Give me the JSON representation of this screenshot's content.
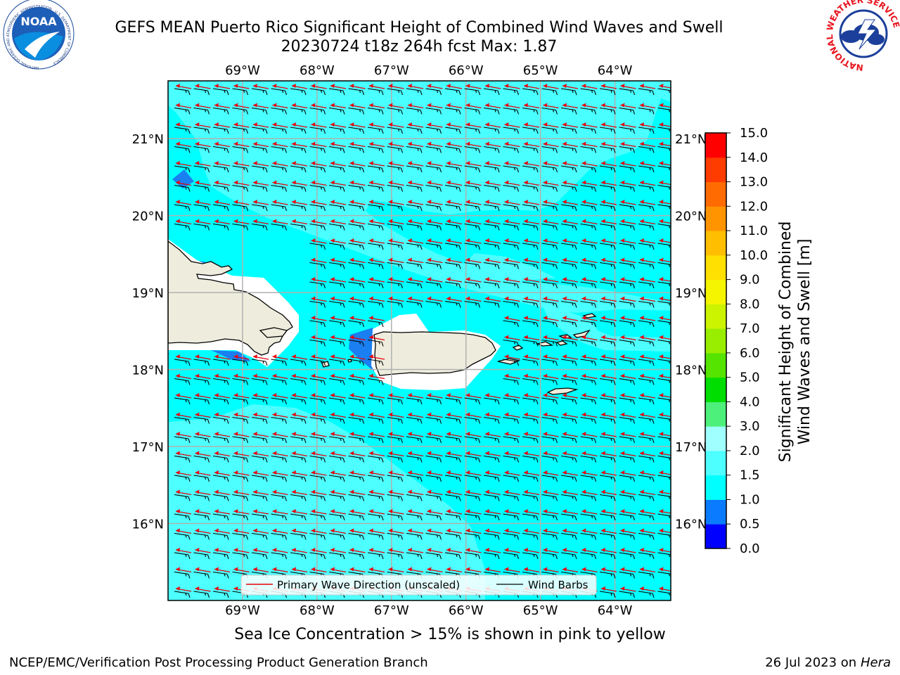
{
  "header": {
    "title_line1": "GEFS MEAN Puerto Rico Significant Height of Combined Wind Waves and Swell",
    "title_line2": "20230724 t18z 264h fcst   Max: 1.87"
  },
  "logos": {
    "noaa_text": "NOAA",
    "noaa_ring_text": "NATIONAL OCEANIC AND ATMOSPHERIC ADMINISTRATION · U.S. DEPARTMENT OF COMMERCE",
    "nws_ring_text": "NATIONAL WEATHER SERVICE"
  },
  "map": {
    "lon_labels": [
      "69°W",
      "68°W",
      "67°W",
      "66°W",
      "65°W",
      "64°W"
    ],
    "lon_values": [
      -69,
      -68,
      -67,
      -66,
      -65,
      -64
    ],
    "lat_labels": [
      "21°N",
      "20°N",
      "19°N",
      "18°N",
      "17°N",
      "16°N"
    ],
    "lat_values": [
      21,
      20,
      19,
      18,
      17,
      16
    ],
    "extent": {
      "lon_min": -70.0,
      "lon_max": -63.25,
      "lat_min": 15.0,
      "lat_max": 21.75
    },
    "ocean_color": "#00ffff",
    "light_band_color": "#4dffff",
    "land_color": "#eeeddd",
    "wave_arrow_color": "#e8000b",
    "barb_color": "#000000",
    "grid_color": "#b0b0b0"
  },
  "legend": {
    "wave_label": "Primary Wave Direction (unscaled)",
    "barb_label": "Wind Barbs"
  },
  "colorbar": {
    "label_line1": "Significant Height of Combined",
    "label_line2": "Wind Waves and Swell [m]",
    "ticks": [
      "0.0",
      "0.5",
      "1.0",
      "1.5",
      "2.0",
      "3.0",
      "4.0",
      "5.0",
      "6.0",
      "7.0",
      "8.0",
      "9.0",
      "10.0",
      "11.0",
      "12.0",
      "13.0",
      "14.0",
      "15.0"
    ],
    "colors": [
      "#0000ff",
      "#0a7bff",
      "#00ffff",
      "#4dffff",
      "#a0ffff",
      "#4cf07a",
      "#00dd00",
      "#55e400",
      "#99ee00",
      "#ccf300",
      "#f5f500",
      "#ffe000",
      "#ffbf00",
      "#ff9400",
      "#ff6b00",
      "#ff3c00",
      "#ff0000"
    ]
  },
  "notes": {
    "ice": "Sea Ice Concentration > 15% is shown in pink to yellow",
    "footer_left": "NCEP/EMC/Verification Post Processing Product Generation Branch",
    "footer_date": "26 Jul 2023 on ",
    "footer_host": "Hera"
  }
}
